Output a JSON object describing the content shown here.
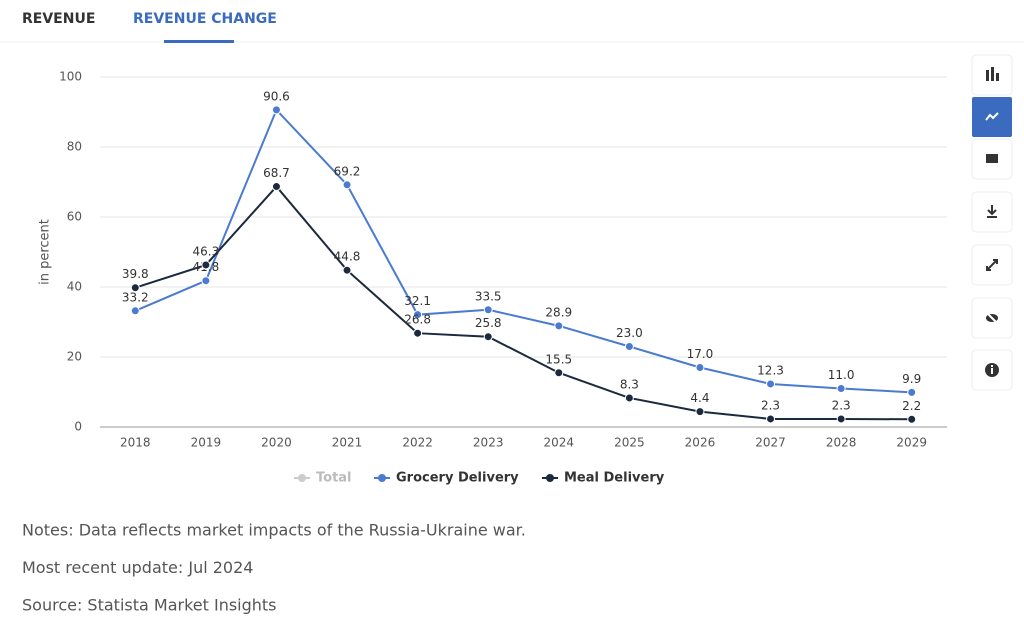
{
  "tabs": [
    "REVENUE",
    "REVENUE CHANGE"
  ],
  "chart_data": {
    "type": "line",
    "y_label": "in percent",
    "categories": [
      "2018",
      "2019",
      "2020",
      "2021",
      "2022",
      "2023",
      "2024",
      "2025",
      "2026",
      "2027",
      "2028",
      "2029"
    ],
    "series": [
      {
        "name": "Grocery Delivery",
        "color": "#4a7bd0",
        "values": [
          33.2,
          41.8,
          90.6,
          69.2,
          32.1,
          33.5,
          28.9,
          23.0,
          17.0,
          12.3,
          11.0,
          9.9
        ],
        "value_labels": [
          "33.2",
          "41.8",
          "90.6",
          "69.2",
          "32.1",
          "33.5",
          "28.9",
          "23.0",
          "17.0",
          "12.3",
          "11.0",
          "9.9"
        ]
      },
      {
        "name": "Meal Delivery",
        "color": "#1b2a3e",
        "values": [
          39.8,
          46.3,
          68.7,
          44.8,
          26.8,
          25.8,
          15.5,
          8.3,
          4.4,
          2.3,
          2.3,
          2.2
        ],
        "value_labels": [
          "39.8",
          "46.3",
          "68.7",
          "44.8",
          "26.8",
          "25.8",
          "15.5",
          "8.3",
          "4.4",
          "2.3",
          "2.3",
          "2.2"
        ]
      }
    ],
    "inactive_series": [
      {
        "name": "Total",
        "color": "#cccccc"
      }
    ],
    "ylim": [
      0,
      100
    ],
    "yticks": [
      0,
      20,
      40,
      60,
      80,
      100
    ],
    "grid": true
  },
  "notes": [
    "Notes: Data reflects market impacts of the Russia-Ukraine war.",
    "Most recent update: Jul 2024",
    "Source: Statista Market Insights"
  ]
}
